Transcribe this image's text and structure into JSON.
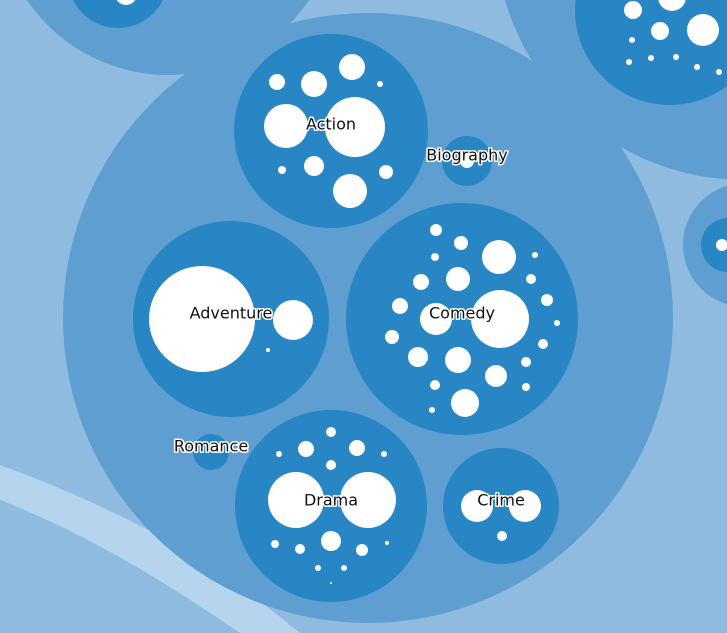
{
  "colors": {
    "background": "#8fbbe0",
    "light_band": "#b5d4ee",
    "outer_ring": "#5f9ed0",
    "genre": "#2886c4",
    "leaf": "#ffffff",
    "label_text": "#111111"
  },
  "genres": [
    {
      "key": "action",
      "label": "Action"
    },
    {
      "key": "biography",
      "label": "Biography"
    },
    {
      "key": "adventure",
      "label": "Adventure"
    },
    {
      "key": "comedy",
      "label": "Comedy"
    },
    {
      "key": "romance",
      "label": "Romance"
    },
    {
      "key": "drama",
      "label": "Drama"
    },
    {
      "key": "crime",
      "label": "Crime"
    }
  ]
}
